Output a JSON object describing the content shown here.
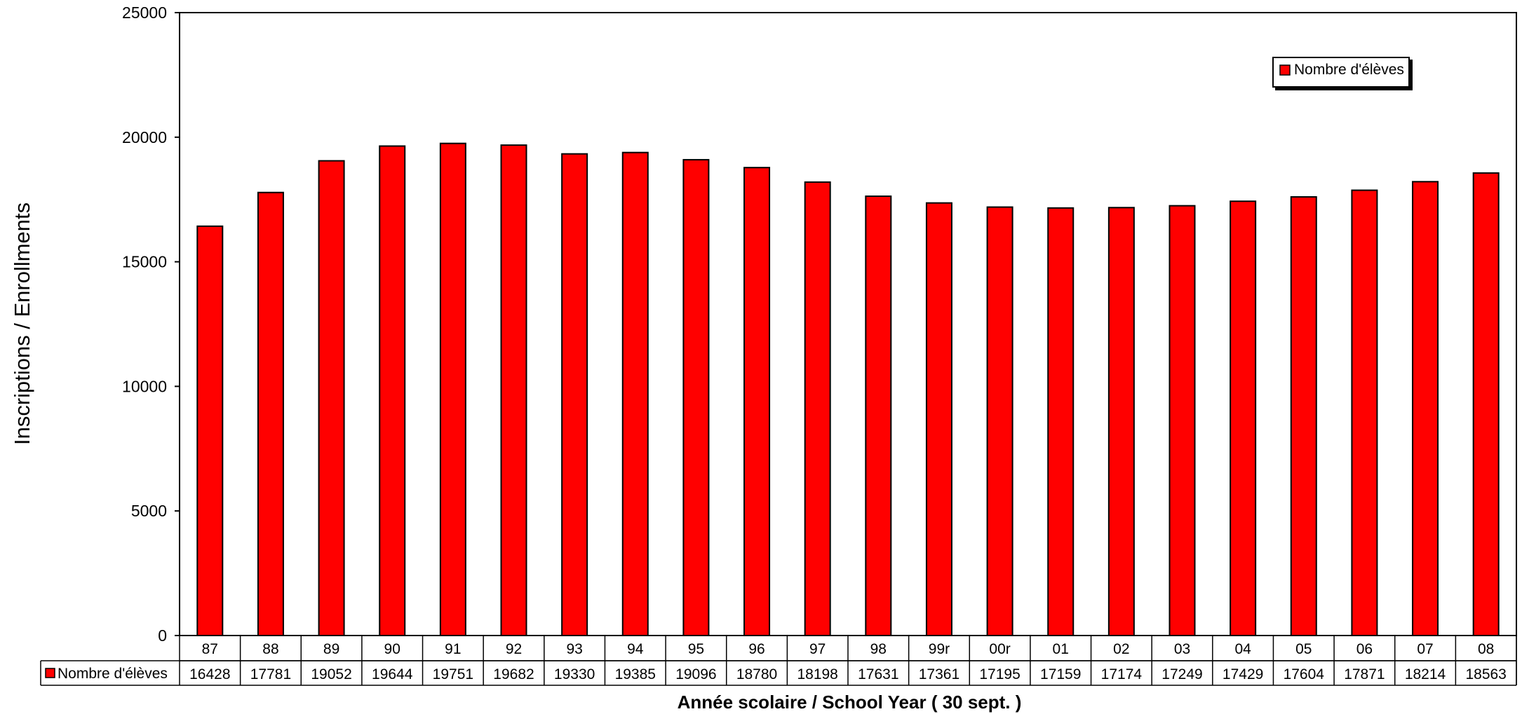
{
  "chart_data": {
    "type": "bar",
    "categories": [
      "87",
      "88",
      "89",
      "90",
      "91",
      "92",
      "93",
      "94",
      "95",
      "96",
      "97",
      "98",
      "99r",
      "00r",
      "01",
      "02",
      "03",
      "04",
      "05",
      "06",
      "07",
      "08"
    ],
    "series": [
      {
        "name": "Nombre d'élèves",
        "color": "#ff0000",
        "values": [
          16428,
          17781,
          19052,
          19644,
          19751,
          19682,
          19330,
          19385,
          19096,
          18780,
          18198,
          17631,
          17361,
          17195,
          17159,
          17174,
          17249,
          17429,
          17604,
          17871,
          18214,
          18563
        ]
      }
    ],
    "ylabel": "Inscriptions / Enrollments",
    "xlabel": "Année scolaire / School Year ( 30 sept. )",
    "ylim": [
      0,
      25000
    ],
    "yticks": [
      0,
      5000,
      10000,
      15000,
      20000,
      25000
    ],
    "legend_position": "top-right",
    "data_table": true,
    "grid": false
  }
}
